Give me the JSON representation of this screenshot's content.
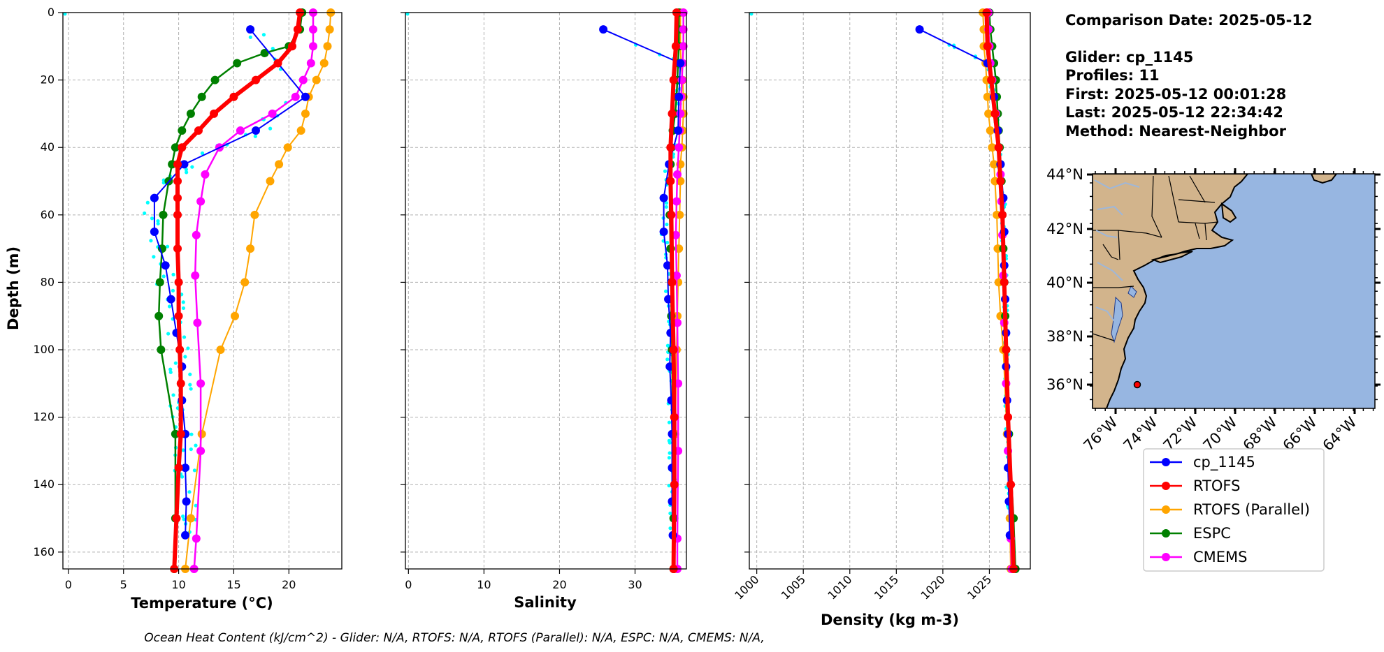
{
  "info": {
    "comparison_date": "Comparison Date: 2025-05-12",
    "glider": "Glider: cp_1145",
    "profiles": "Profiles: 11",
    "first": "First: 2025-05-12 00:01:28",
    "last": "Last: 2025-05-12 22:34:42",
    "method": "Method: Nearest-Neighbor"
  },
  "footer": "Ocean Heat Content (kJ/cm^2) - Glider: N/A,  RTOFS: N/A,  RTOFS (Parallel): N/A,  ESPC: N/A,  CMEMS: N/A,",
  "colors": {
    "cp_1145": "#0000ff",
    "RTOFS": "#ff0000",
    "RTOFS (Parallel)": "#ffa500",
    "ESPC": "#008000",
    "CMEMS": "#ff00ff",
    "glider_raw": "#00ffff",
    "land": "#d2b48c",
    "ocean": "#97b6e1"
  },
  "chart_data": [
    {
      "type": "line",
      "xlabel": "Temperature (°C)",
      "ylabel": "Depth (m)",
      "xlim": [
        -0.5,
        24.8
      ],
      "ylim": [
        165,
        0
      ],
      "x_ticks": [
        0,
        5,
        10,
        15,
        20
      ],
      "y_ticks": [
        0,
        20,
        40,
        60,
        80,
        100,
        120,
        140,
        160
      ],
      "grid": true,
      "series": [
        {
          "name": "cp_1145",
          "depth": [
            5,
            25,
            35,
            45,
            55,
            65,
            75,
            85,
            95,
            105,
            115,
            125,
            135,
            145,
            155
          ],
          "values": [
            16.5,
            21.5,
            17.0,
            10.5,
            7.8,
            7.8,
            8.8,
            9.3,
            9.8,
            10.3,
            10.3,
            10.6,
            10.6,
            10.7,
            10.6
          ]
        },
        {
          "name": "RTOFS",
          "depth": [
            0,
            5,
            10,
            15,
            20,
            25,
            30,
            35,
            40,
            45,
            50,
            55,
            60,
            70,
            80,
            90,
            100,
            110,
            125,
            135,
            150,
            165
          ],
          "values": [
            21.0,
            20.8,
            20.3,
            19.0,
            17.0,
            15.0,
            13.2,
            11.8,
            10.3,
            9.9,
            9.9,
            9.9,
            9.9,
            9.9,
            10.0,
            10.0,
            10.1,
            10.2,
            10.2,
            10.0,
            9.8,
            9.6
          ]
        },
        {
          "name": "RTOFS (Parallel)",
          "depth": [
            0,
            5,
            10,
            15,
            20,
            25,
            30,
            35,
            40,
            45,
            50,
            60,
            70,
            80,
            90,
            100,
            125,
            150,
            165
          ],
          "values": [
            23.8,
            23.7,
            23.5,
            23.2,
            22.5,
            21.8,
            21.5,
            21.1,
            19.9,
            19.1,
            18.3,
            16.9,
            16.5,
            16.0,
            15.1,
            13.8,
            12.1,
            11.1,
            10.6
          ]
        },
        {
          "name": "ESPC",
          "depth": [
            0,
            5,
            10,
            12,
            15,
            20,
            25,
            30,
            35,
            40,
            45,
            50,
            60,
            70,
            80,
            90,
            100,
            125,
            150,
            165
          ],
          "values": [
            21.2,
            21.0,
            20.0,
            17.8,
            15.3,
            13.3,
            12.1,
            11.1,
            10.3,
            9.7,
            9.4,
            9.1,
            8.6,
            8.5,
            8.3,
            8.2,
            8.4,
            9.7,
            9.7,
            9.6
          ]
        },
        {
          "name": "CMEMS",
          "depth": [
            0,
            5,
            10,
            15,
            20,
            25,
            30,
            35,
            40,
            48,
            56,
            66,
            78,
            92,
            110,
            130,
            156,
            165
          ],
          "values": [
            22.2,
            22.2,
            22.2,
            22.0,
            21.3,
            20.6,
            18.5,
            15.6,
            13.7,
            12.4,
            12.0,
            11.6,
            11.5,
            11.7,
            12.0,
            12.0,
            11.6,
            11.4
          ]
        }
      ]
    },
    {
      "type": "line",
      "xlabel": "Salinity",
      "xlim": [
        -0.4,
        36.8
      ],
      "ylim": [
        165,
        0
      ],
      "x_ticks": [
        0,
        10,
        20,
        30
      ],
      "grid": true,
      "series": [
        {
          "name": "cp_1145",
          "depth": [
            5,
            15,
            25,
            35,
            45,
            55,
            65,
            75,
            85,
            95,
            105,
            115,
            125,
            135,
            145,
            155
          ],
          "values": [
            25.8,
            36.0,
            35.8,
            35.7,
            34.5,
            33.8,
            33.8,
            34.3,
            34.4,
            34.7,
            34.6,
            34.8,
            34.9,
            34.9,
            34.9,
            35.0
          ]
        },
        {
          "name": "RTOFS",
          "depth": [
            0,
            10,
            20,
            30,
            40,
            50,
            60,
            80,
            100,
            120,
            140,
            165
          ],
          "values": [
            35.5,
            35.4,
            35.1,
            34.9,
            34.7,
            34.7,
            34.8,
            34.9,
            35.1,
            35.2,
            35.2,
            35.1
          ]
        },
        {
          "name": "RTOFS (Parallel)",
          "depth": [
            0,
            5,
            10,
            15,
            20,
            25,
            30,
            35,
            40,
            45,
            50,
            60,
            70,
            80,
            90,
            100,
            125,
            150,
            165
          ],
          "values": [
            36.0,
            36.0,
            36.0,
            36.1,
            36.3,
            36.4,
            36.4,
            36.3,
            36.2,
            36.0,
            36.0,
            35.9,
            35.8,
            35.7,
            35.6,
            35.5,
            35.3,
            35.2,
            35.2
          ]
        },
        {
          "name": "ESPC",
          "depth": [
            0,
            5,
            10,
            15,
            20,
            25,
            30,
            35,
            40,
            45,
            50,
            60,
            70,
            80,
            90,
            100,
            125,
            150,
            165
          ],
          "values": [
            35.8,
            35.8,
            35.8,
            35.7,
            35.6,
            35.5,
            35.3,
            35.0,
            34.8,
            34.7,
            34.6,
            34.6,
            34.7,
            34.8,
            34.8,
            34.9,
            35.0,
            35.1,
            35.1
          ]
        },
        {
          "name": "CMEMS",
          "depth": [
            0,
            5,
            10,
            15,
            20,
            25,
            30,
            35,
            40,
            48,
            56,
            66,
            78,
            92,
            110,
            130,
            156,
            165
          ],
          "values": [
            36.4,
            36.4,
            36.4,
            36.3,
            36.2,
            36.1,
            36.0,
            35.9,
            35.8,
            35.6,
            35.5,
            35.4,
            35.5,
            35.6,
            35.7,
            35.7,
            35.6,
            35.6
          ]
        }
      ]
    },
    {
      "type": "line",
      "xlabel": "Density (kg m-3)",
      "xlim": [
        999.2,
        1029.4
      ],
      "ylim": [
        165,
        0
      ],
      "x_ticks": [
        1000,
        1005,
        1010,
        1015,
        1020,
        1025
      ],
      "grid": true,
      "series": [
        {
          "name": "cp_1145",
          "depth": [
            5,
            15,
            25,
            35,
            45,
            55,
            65,
            75,
            85,
            95,
            105,
            115,
            125,
            135,
            145,
            155
          ],
          "values": [
            1017.5,
            1024.8,
            1025.5,
            1025.9,
            1026.2,
            1026.5,
            1026.6,
            1026.6,
            1026.7,
            1026.8,
            1026.8,
            1026.9,
            1027.0,
            1027.0,
            1027.1,
            1027.2
          ]
        },
        {
          "name": "RTOFS",
          "depth": [
            0,
            10,
            20,
            30,
            40,
            50,
            60,
            80,
            100,
            120,
            140,
            165
          ],
          "values": [
            1024.7,
            1024.8,
            1025.2,
            1025.6,
            1026.0,
            1026.2,
            1026.4,
            1026.6,
            1026.8,
            1027.0,
            1027.3,
            1027.6
          ]
        },
        {
          "name": "RTOFS (Parallel)",
          "depth": [
            0,
            5,
            10,
            15,
            20,
            25,
            30,
            35,
            40,
            45,
            50,
            60,
            70,
            80,
            90,
            100,
            125,
            150,
            165
          ],
          "values": [
            1024.3,
            1024.4,
            1024.4,
            1024.6,
            1024.7,
            1024.8,
            1024.9,
            1025.1,
            1025.3,
            1025.5,
            1025.6,
            1025.8,
            1025.9,
            1026.0,
            1026.2,
            1026.5,
            1026.9,
            1027.2,
            1027.3
          ]
        },
        {
          "name": "ESPC",
          "depth": [
            0,
            5,
            10,
            15,
            20,
            25,
            30,
            35,
            40,
            45,
            50,
            60,
            70,
            80,
            90,
            100,
            125,
            150,
            165
          ],
          "values": [
            1025.0,
            1025.1,
            1025.3,
            1025.5,
            1025.7,
            1025.8,
            1025.9,
            1026.0,
            1026.1,
            1026.2,
            1026.3,
            1026.4,
            1026.5,
            1026.6,
            1026.7,
            1026.8,
            1027.1,
            1027.6,
            1027.8
          ]
        },
        {
          "name": "CMEMS",
          "depth": [
            0,
            5,
            10,
            15,
            20,
            25,
            30,
            35,
            40,
            48,
            56,
            66,
            78,
            92,
            110,
            130,
            156,
            165
          ],
          "values": [
            1024.9,
            1024.9,
            1025.0,
            1025.1,
            1025.3,
            1025.5,
            1025.7,
            1025.9,
            1026.0,
            1026.2,
            1026.3,
            1026.4,
            1026.5,
            1026.6,
            1026.8,
            1027.0,
            1027.3,
            1027.4
          ]
        }
      ]
    },
    {
      "type": "map",
      "lon_ticks": [
        "76°W",
        "74°W",
        "72°W",
        "70°W",
        "68°W",
        "66°W",
        "64°W"
      ],
      "lat_ticks": [
        "44°N",
        "42°N",
        "40°N",
        "38°N",
        "36°N"
      ],
      "glider_position": {
        "lon": -75.2,
        "lat": 36.0
      }
    }
  ],
  "legend": {
    "placement": "below-map",
    "entries": [
      "cp_1145",
      "RTOFS",
      "RTOFS (Parallel)",
      "ESPC",
      "CMEMS"
    ]
  }
}
